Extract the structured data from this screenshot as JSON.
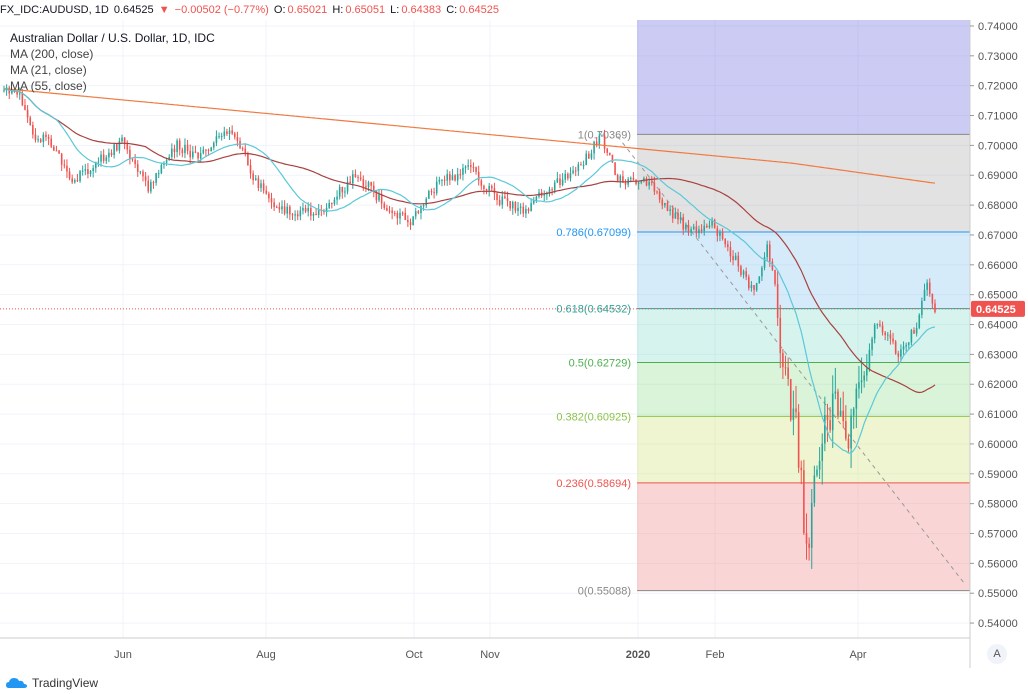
{
  "header": {
    "symbol": "FX_IDC:AUDUSD, 1D",
    "last": "0.64525",
    "change": "−0.00502 (−0.77%)",
    "open_label": "O:",
    "open": "0.65021",
    "high_label": "H:",
    "high": "0.65051",
    "low_label": "L:",
    "low": "0.64383",
    "close_label": "C:",
    "close": "0.64525"
  },
  "legend": {
    "title": "Australian Dollar / U.S. Dollar, 1D, IDC",
    "ma200": "MA (200, close)",
    "ma21": "MA (21, close)",
    "ma55": "MA (55, close)"
  },
  "footer": {
    "brand": "TradingView"
  },
  "auto_button": "A",
  "colors": {
    "up": "#26a69a",
    "down": "#ef5350",
    "ma200": "#f07a3e",
    "ma21": "#5bc8d8",
    "ma55": "#a8413f"
  },
  "chart_data": {
    "type": "candlestick",
    "title": "Australian Dollar / U.S. Dollar, 1D, IDC",
    "ylim": [
      0.535,
      0.742
    ],
    "y_ticks": [
      "0.74000",
      "0.73000",
      "0.72000",
      "0.71000",
      "0.70000",
      "0.69000",
      "0.68000",
      "0.67000",
      "0.66000",
      "0.65000",
      "0.64000",
      "0.63000",
      "0.62000",
      "0.61000",
      "0.60000",
      "0.59000",
      "0.58000",
      "0.57000",
      "0.56000",
      "0.55000",
      "0.54000"
    ],
    "x_ticks": [
      "Jun",
      "Aug",
      "Oct",
      "Nov",
      "2020",
      "Feb",
      "Apr"
    ],
    "current_price_label": "0.64525",
    "fibonacci": [
      {
        "label": "1(0.70369)",
        "value": 0.70369
      },
      {
        "label": "0.786(0.67099)",
        "value": 0.67099
      },
      {
        "label": "0.618(0.64532)",
        "value": 0.64532
      },
      {
        "label": "0.5(0.62729)",
        "value": 0.62729
      },
      {
        "label": "0.382(0.60925)",
        "value": 0.60925
      },
      {
        "label": "0.236(0.58694)",
        "value": 0.58694
      },
      {
        "label": "0(0.55088)",
        "value": 0.55088
      }
    ],
    "anchors": [
      {
        "d": 0,
        "p": 0.719
      },
      {
        "d": 6,
        "p": 0.716
      },
      {
        "d": 12,
        "p": 0.703
      },
      {
        "d": 18,
        "p": 0.701
      },
      {
        "d": 26,
        "p": 0.688
      },
      {
        "d": 35,
        "p": 0.694
      },
      {
        "d": 45,
        "p": 0.701
      },
      {
        "d": 55,
        "p": 0.686
      },
      {
        "d": 66,
        "p": 0.7
      },
      {
        "d": 74,
        "p": 0.696
      },
      {
        "d": 84,
        "p": 0.705
      },
      {
        "d": 90,
        "p": 0.7
      },
      {
        "d": 96,
        "p": 0.688
      },
      {
        "d": 104,
        "p": 0.679
      },
      {
        "d": 120,
        "p": 0.677
      },
      {
        "d": 133,
        "p": 0.689
      },
      {
        "d": 138,
        "p": 0.687
      },
      {
        "d": 146,
        "p": 0.679
      },
      {
        "d": 155,
        "p": 0.675
      },
      {
        "d": 166,
        "p": 0.688
      },
      {
        "d": 178,
        "p": 0.692
      },
      {
        "d": 188,
        "p": 0.682
      },
      {
        "d": 198,
        "p": 0.678
      },
      {
        "d": 210,
        "p": 0.687
      },
      {
        "d": 220,
        "p": 0.694
      },
      {
        "d": 228,
        "p": 0.703
      },
      {
        "d": 234,
        "p": 0.688
      },
      {
        "d": 245,
        "p": 0.688
      },
      {
        "d": 256,
        "p": 0.676
      },
      {
        "d": 262,
        "p": 0.671
      },
      {
        "d": 270,
        "p": 0.674
      },
      {
        "d": 280,
        "p": 0.66
      },
      {
        "d": 286,
        "p": 0.65
      },
      {
        "d": 291,
        "p": 0.666
      },
      {
        "d": 294,
        "p": 0.652
      },
      {
        "d": 298,
        "p": 0.62
      },
      {
        "d": 302,
        "p": 0.606
      },
      {
        "d": 305,
        "p": 0.575
      },
      {
        "d": 307,
        "p": 0.57
      },
      {
        "d": 310,
        "p": 0.592
      },
      {
        "d": 314,
        "p": 0.608
      },
      {
        "d": 318,
        "p": 0.615
      },
      {
        "d": 322,
        "p": 0.603
      },
      {
        "d": 326,
        "p": 0.617
      },
      {
        "d": 332,
        "p": 0.64
      },
      {
        "d": 338,
        "p": 0.634
      },
      {
        "d": 342,
        "p": 0.63
      },
      {
        "d": 348,
        "p": 0.64
      },
      {
        "d": 352,
        "p": 0.654
      },
      {
        "d": 355,
        "p": 0.645
      }
    ]
  }
}
